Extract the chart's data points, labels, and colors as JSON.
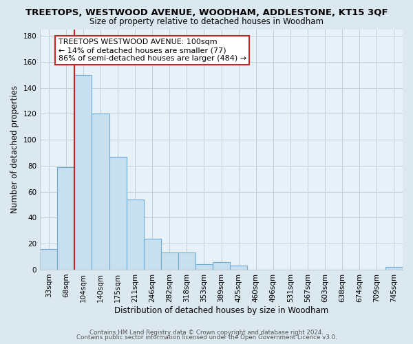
{
  "title": "TREETOPS, WESTWOOD AVENUE, WOODHAM, ADDLESTONE, KT15 3QF",
  "subtitle": "Size of property relative to detached houses in Woodham",
  "xlabel": "Distribution of detached houses by size in Woodham",
  "ylabel": "Number of detached properties",
  "bar_labels": [
    "33sqm",
    "68sqm",
    "104sqm",
    "140sqm",
    "175sqm",
    "211sqm",
    "246sqm",
    "282sqm",
    "318sqm",
    "353sqm",
    "389sqm",
    "425sqm",
    "460sqm",
    "496sqm",
    "531sqm",
    "567sqm",
    "603sqm",
    "638sqm",
    "674sqm",
    "709sqm",
    "745sqm"
  ],
  "bar_values": [
    16,
    79,
    150,
    120,
    87,
    54,
    24,
    13,
    13,
    4,
    6,
    3,
    0,
    0,
    0,
    0,
    0,
    0,
    0,
    0,
    2
  ],
  "bar_color": "#c8dff0",
  "bar_edge_color": "#6aaed6",
  "marker_line_color": "#cc2222",
  "annotation_line1": "TREETOPS WESTWOOD AVENUE: 100sqm",
  "annotation_line2": "← 14% of detached houses are smaller (77)",
  "annotation_line3": "86% of semi-detached houses are larger (484) →",
  "annotation_box_color": "#cc2222",
  "ylim": [
    0,
    185
  ],
  "yticks": [
    0,
    20,
    40,
    60,
    80,
    100,
    120,
    140,
    160,
    180
  ],
  "footer1": "Contains HM Land Registry data © Crown copyright and database right 2024.",
  "footer2": "Contains public sector information licensed under the Open Government Licence v3.0.",
  "bg_color": "#dce8f0",
  "plot_bg_color": "#e8f0f8",
  "grid_color": "#c0ccd8",
  "title_fontsize": 9.5,
  "subtitle_fontsize": 8.5,
  "tick_fontsize": 7.5,
  "axis_label_fontsize": 8.5,
  "footer_fontsize": 6.3,
  "annot_fontsize": 8.0
}
